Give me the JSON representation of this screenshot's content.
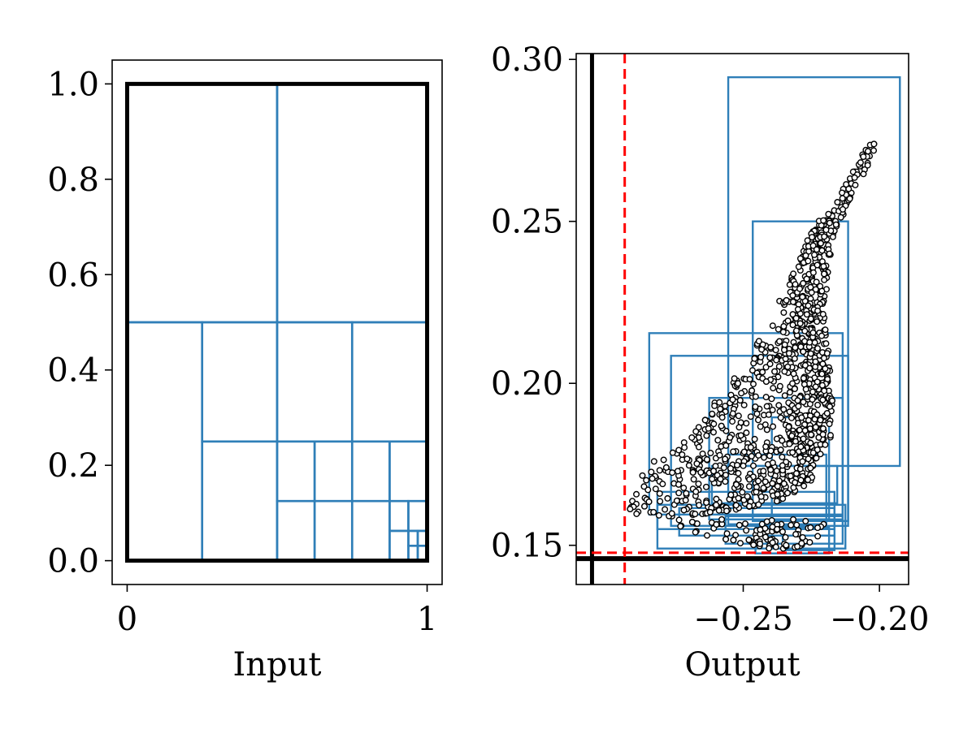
{
  "chart_data": [
    {
      "type": "rectangles",
      "panel": "left",
      "xlabel": "Input",
      "ylabel": "",
      "xlim": [
        -0.05,
        1.05
      ],
      "ylim": [
        -0.05,
        1.05
      ],
      "xticks": [
        {
          "value": 0,
          "label": "0"
        },
        {
          "value": 1,
          "label": "1"
        }
      ],
      "yticks": [
        {
          "value": 0.0,
          "label": "0.0"
        },
        {
          "value": 0.2,
          "label": "0.2"
        },
        {
          "value": 0.4,
          "label": "0.4"
        },
        {
          "value": 0.6,
          "label": "0.6"
        },
        {
          "value": 0.8,
          "label": "0.8"
        },
        {
          "value": 1.0,
          "label": "1.0"
        }
      ],
      "domain_box": [
        0,
        0,
        1,
        1
      ],
      "colors": {
        "boxes": "#2f7fb8",
        "domain": "#000000"
      },
      "boxes": [
        [
          0,
          0.5,
          0.5,
          1.0
        ],
        [
          0.5,
          0.5,
          1.0,
          1.0
        ],
        [
          0,
          0,
          0.25,
          0.5
        ],
        [
          0.25,
          0.25,
          0.5,
          0.5
        ],
        [
          0.5,
          0.25,
          0.75,
          0.5
        ],
        [
          0.75,
          0.25,
          1.0,
          0.5
        ],
        [
          0.25,
          0,
          0.5,
          0.25
        ],
        [
          0.5,
          0.125,
          0.625,
          0.25
        ],
        [
          0.625,
          0.125,
          0.75,
          0.25
        ],
        [
          0.5,
          0,
          0.625,
          0.125
        ],
        [
          0.625,
          0,
          0.75,
          0.125
        ],
        [
          0.75,
          0.125,
          0.875,
          0.25
        ],
        [
          0.875,
          0.125,
          1.0,
          0.25
        ],
        [
          0.75,
          0,
          0.875,
          0.125
        ],
        [
          0.875,
          0.0625,
          0.9375,
          0.125
        ],
        [
          0.9375,
          0.0625,
          1.0,
          0.125
        ],
        [
          0.875,
          0,
          0.9375,
          0.0625
        ],
        [
          0.9375,
          0.03125,
          0.96875,
          0.0625
        ],
        [
          0.96875,
          0.03125,
          1.0,
          0.0625
        ],
        [
          0.9375,
          0,
          0.96875,
          0.03125
        ],
        [
          0.96875,
          0,
          1.0,
          0.03125
        ]
      ]
    },
    {
      "type": "scatter",
      "panel": "right",
      "xlabel": "Output",
      "ylabel": "",
      "xlim": [
        -0.3113,
        -0.1893
      ],
      "ylim": [
        0.1379,
        0.3018
      ],
      "xticks": [
        {
          "value": -0.25,
          "label": "−0.25"
        },
        {
          "value": -0.2,
          "label": "−0.20"
        }
      ],
      "yticks": [
        {
          "value": 0.15,
          "label": "0.15"
        },
        {
          "value": 0.2,
          "label": "0.20"
        },
        {
          "value": 0.25,
          "label": "0.25"
        },
        {
          "value": 0.3,
          "label": "0.30"
        }
      ],
      "colors": {
        "boxes": "#2f7fb8",
        "points": "#000000",
        "bound": "#000000",
        "dashed": "#ff0000"
      },
      "bound_lines": {
        "x": -0.3055,
        "y": 0.1459
      },
      "dashed_lines": {
        "x": -0.2935,
        "y": 0.1477
      },
      "boxes": [
        [
          -0.2555,
          0.1745,
          -0.1925,
          0.2945
        ],
        [
          -0.2465,
          0.1575,
          -0.2115,
          0.25
        ],
        [
          -0.2845,
          0.1595,
          -0.2135,
          0.2155
        ],
        [
          -0.2765,
          0.156,
          -0.2115,
          0.2085
        ],
        [
          -0.2625,
          0.158,
          -0.2135,
          0.1955
        ],
        [
          -0.2395,
          0.158,
          -0.2185,
          0.1895
        ],
        [
          -0.2555,
          0.1565,
          -0.2195,
          0.178
        ],
        [
          -0.2615,
          0.163,
          -0.2155,
          0.1745
        ],
        [
          -0.2815,
          0.155,
          -0.2165,
          0.1665
        ],
        [
          -0.2815,
          0.149,
          -0.2125,
          0.1625
        ],
        [
          -0.2735,
          0.153,
          -0.2165,
          0.1615
        ],
        [
          -0.2565,
          0.1505,
          -0.2135,
          0.159
        ],
        [
          -0.2455,
          0.1475,
          -0.2185,
          0.1555
        ],
        [
          -0.2355,
          0.1485,
          -0.2165,
          0.153
        ]
      ],
      "envelope": {
        "lower": [
          [
            -0.2925,
            0.157
          ],
          [
            -0.285,
            0.16
          ],
          [
            -0.275,
            0.156
          ],
          [
            -0.262,
            0.152
          ],
          [
            -0.25,
            0.15
          ],
          [
            -0.24,
            0.149
          ],
          [
            -0.23,
            0.149
          ],
          [
            -0.222,
            0.152
          ],
          [
            -0.218,
            0.16
          ]
        ],
        "upper": [
          [
            -0.2925,
            0.159
          ],
          [
            -0.286,
            0.176
          ],
          [
            -0.278,
            0.177
          ],
          [
            -0.268,
            0.186
          ],
          [
            -0.258,
            0.197
          ],
          [
            -0.25,
            0.205
          ],
          [
            -0.243,
            0.215
          ],
          [
            -0.237,
            0.225
          ],
          [
            -0.231,
            0.235
          ],
          [
            -0.225,
            0.247
          ],
          [
            -0.219,
            0.254
          ],
          [
            -0.212,
            0.262
          ],
          [
            -0.204,
            0.274
          ],
          [
            -0.201,
            0.274
          ]
        ],
        "right": [
          [
            -0.2925,
            0.158
          ],
          [
            -0.26,
            0.16
          ],
          [
            -0.24,
            0.163
          ],
          [
            -0.225,
            0.17
          ],
          [
            -0.22,
            0.182
          ],
          [
            -0.219,
            0.2
          ],
          [
            -0.2225,
            0.222
          ],
          [
            -0.219,
            0.245
          ],
          [
            -0.212,
            0.258
          ],
          [
            -0.203,
            0.272
          ]
        ],
        "n_points": 1300
      }
    }
  ]
}
